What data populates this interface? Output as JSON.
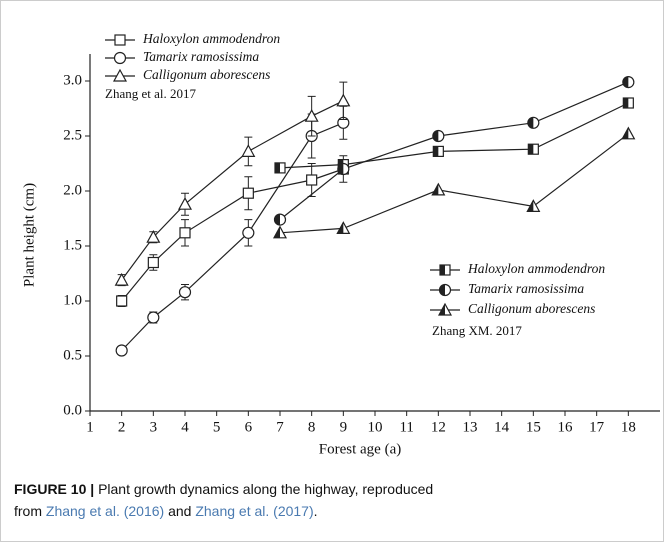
{
  "chart_data": {
    "type": "line",
    "xlabel": "Forest age (a)",
    "ylabel": "Plant height (cm)",
    "xlim": [
      1,
      19
    ],
    "xticks": [
      1,
      2,
      3,
      4,
      5,
      6,
      7,
      8,
      9,
      10,
      11,
      12,
      13,
      14,
      15,
      16,
      17,
      18
    ],
    "ylim": [
      0,
      3.2
    ],
    "yticks": [
      {
        "value": 0,
        "label": "0.0"
      },
      {
        "value": 0.5,
        "label": "0.5"
      },
      {
        "value": 1,
        "label": "1.0"
      },
      {
        "value": 1.5,
        "label": "1.5"
      },
      {
        "value": 2,
        "label": "2.0"
      },
      {
        "value": 2.5,
        "label": "2.5"
      },
      {
        "value": 3,
        "label": "3.0"
      }
    ],
    "annotations": [
      "Zhang et al. 2017",
      "Zhang XM. 2017"
    ],
    "series": [
      {
        "name": "Haloxylon ammodendron",
        "marker": "square",
        "fill": "open",
        "color": "#222",
        "x": [
          2,
          3,
          4,
          6,
          8,
          9
        ],
        "values": [
          1.0,
          1.35,
          1.62,
          1.98,
          2.1,
          2.2
        ],
        "errors": [
          0.05,
          0.07,
          0.12,
          0.15,
          0.15,
          0.12
        ]
      },
      {
        "name": "Tamarix ramosissima",
        "marker": "circle",
        "fill": "open",
        "color": "#222",
        "x": [
          2,
          3,
          4,
          6,
          8,
          9
        ],
        "values": [
          0.55,
          0.85,
          1.08,
          1.62,
          2.5,
          2.62
        ],
        "errors": [
          0.03,
          0.05,
          0.07,
          0.12,
          0.2,
          0.15
        ]
      },
      {
        "name": "Calligonum aborescens",
        "marker": "triangle",
        "fill": "open",
        "color": "#222",
        "x": [
          2,
          3,
          4,
          6,
          8,
          9
        ],
        "values": [
          1.19,
          1.58,
          1.88,
          2.36,
          2.68,
          2.82
        ],
        "errors": [
          0.05,
          0.05,
          0.1,
          0.13,
          0.18,
          0.17
        ]
      },
      {
        "name": "Haloxylon ammodendron",
        "marker": "square",
        "fill": "half",
        "color": "#222",
        "x": [
          7,
          9,
          12,
          15,
          18
        ],
        "values": [
          2.21,
          2.24,
          2.36,
          2.38,
          2.8
        ]
      },
      {
        "name": "Tamarix ramosissima",
        "marker": "circle",
        "fill": "half",
        "color": "#222",
        "x": [
          7,
          9,
          12,
          15,
          18
        ],
        "values": [
          1.74,
          2.2,
          2.5,
          2.62,
          2.99
        ]
      },
      {
        "name": "Calligonum aborescens",
        "marker": "triangle",
        "fill": "half",
        "color": "#222",
        "x": [
          7,
          9,
          12,
          15,
          18
        ],
        "values": [
          1.62,
          1.66,
          2.01,
          1.86,
          2.52
        ]
      }
    ]
  },
  "caption": {
    "label": "FIGURE 10 |",
    "parts": [
      "Plant growth dynamics along the highway, reproduced",
      "from",
      "Zhang et al. (2016)",
      "and",
      "Zhang et al. (2017)",
      "."
    ]
  }
}
